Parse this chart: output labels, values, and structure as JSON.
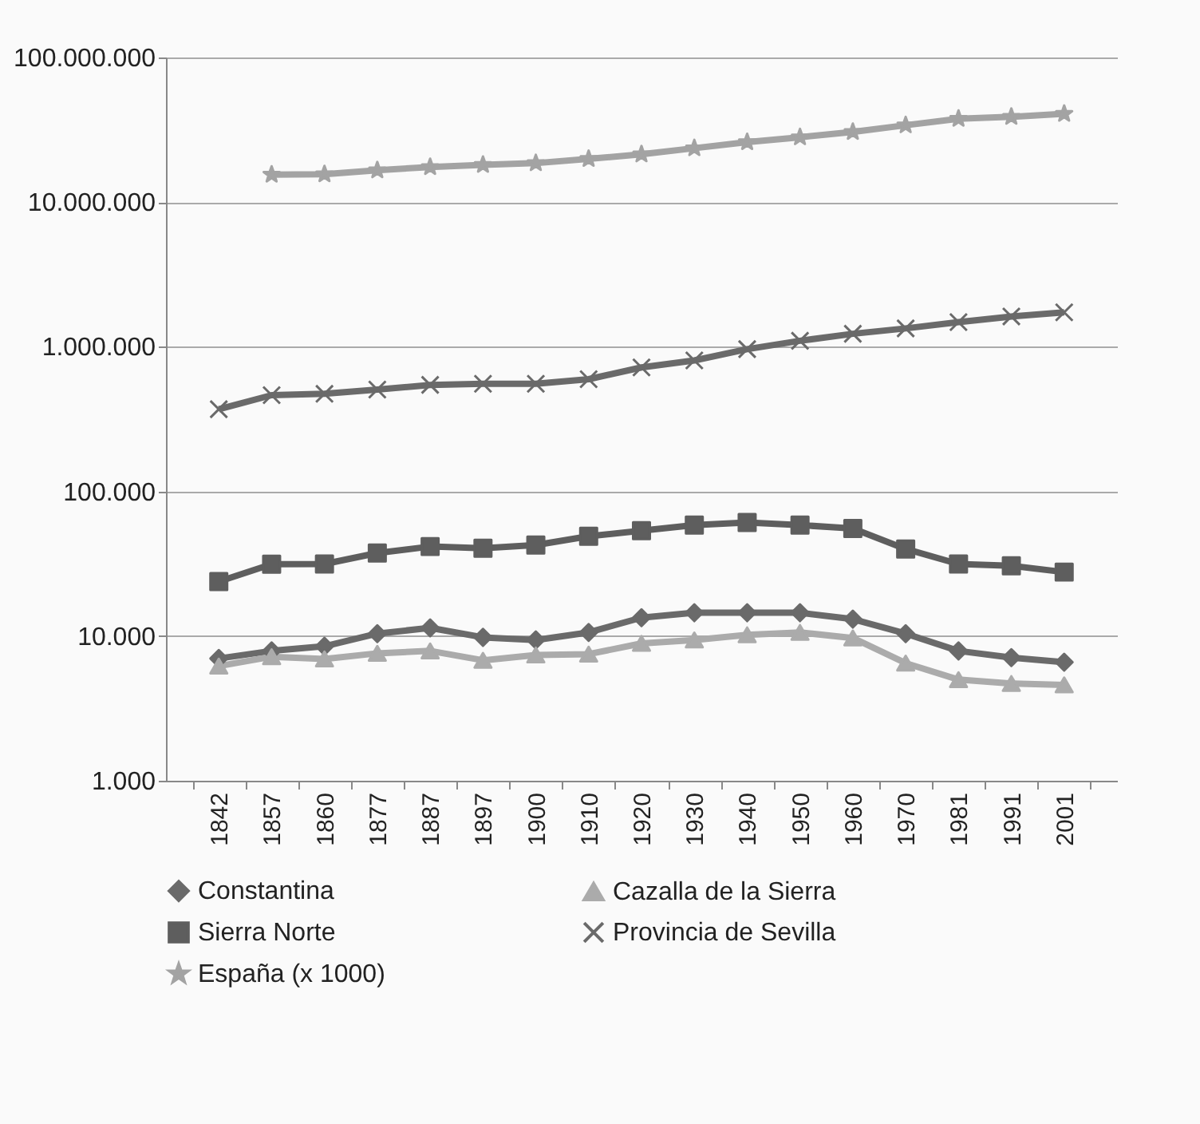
{
  "chart_data": {
    "type": "line",
    "categories": [
      "1842",
      "1857",
      "1860",
      "1877",
      "1887",
      "1897",
      "1900",
      "1910",
      "1920",
      "1930",
      "1940",
      "1950",
      "1960",
      "1970",
      "1981",
      "1991",
      "2001"
    ],
    "log": true,
    "grid": "y",
    "legend": "bottom",
    "line_style": "solid",
    "ylim": [
      1000,
      100000000
    ],
    "yticks": [
      {
        "value": 1000,
        "label": "1.000"
      },
      {
        "value": 10000,
        "label": "10.000"
      },
      {
        "value": 100000,
        "label": "100.000"
      },
      {
        "value": 1000000,
        "label": "1.000.000"
      },
      {
        "value": 10000000,
        "label": "10.000.000"
      },
      {
        "value": 100000000,
        "label": "100.000.000"
      }
    ],
    "series": [
      {
        "name": "Constantina",
        "color": "#6a6a6a",
        "marker": "diamond",
        "values": [
          7000,
          7900,
          8500,
          10400,
          11400,
          9800,
          9400,
          10600,
          13400,
          14500,
          14500,
          14500,
          13100,
          10400,
          7900,
          7100,
          6600
        ]
      },
      {
        "name": "Cazalla de la Sierra",
        "color": "#ababab",
        "marker": "triangle",
        "values": [
          6200,
          7200,
          6950,
          7600,
          7900,
          6800,
          7400,
          7500,
          8900,
          9400,
          10200,
          10600,
          9700,
          6500,
          5000,
          4700,
          4600
        ]
      },
      {
        "name": "Sierra Norte",
        "color": "#5e5e5e",
        "marker": "square",
        "values": [
          23800,
          31400,
          31500,
          37500,
          41600,
          40500,
          42600,
          49000,
          53500,
          58500,
          61000,
          58500,
          55500,
          40000,
          31500,
          30600,
          27700
        ]
      },
      {
        "name": "Provincia de Sevilla",
        "color": "#6a6a6a",
        "marker": "cross",
        "values": [
          370000,
          463000,
          473000,
          506000,
          545000,
          555000,
          555000,
          597000,
          720000,
          805000,
          963000,
          1100000,
          1230000,
          1340000,
          1480000,
          1620000,
          1730000
        ]
      },
      {
        "name": "España (x 1000)",
        "color": "#a3a3a3",
        "marker": "star",
        "values": [
          null,
          15500000,
          15600000,
          16600000,
          17500000,
          18100000,
          18600000,
          19900000,
          21400000,
          23600000,
          26000000,
          28100000,
          30600000,
          34000000,
          37700000,
          38900000,
          40800000
        ]
      }
    ]
  }
}
